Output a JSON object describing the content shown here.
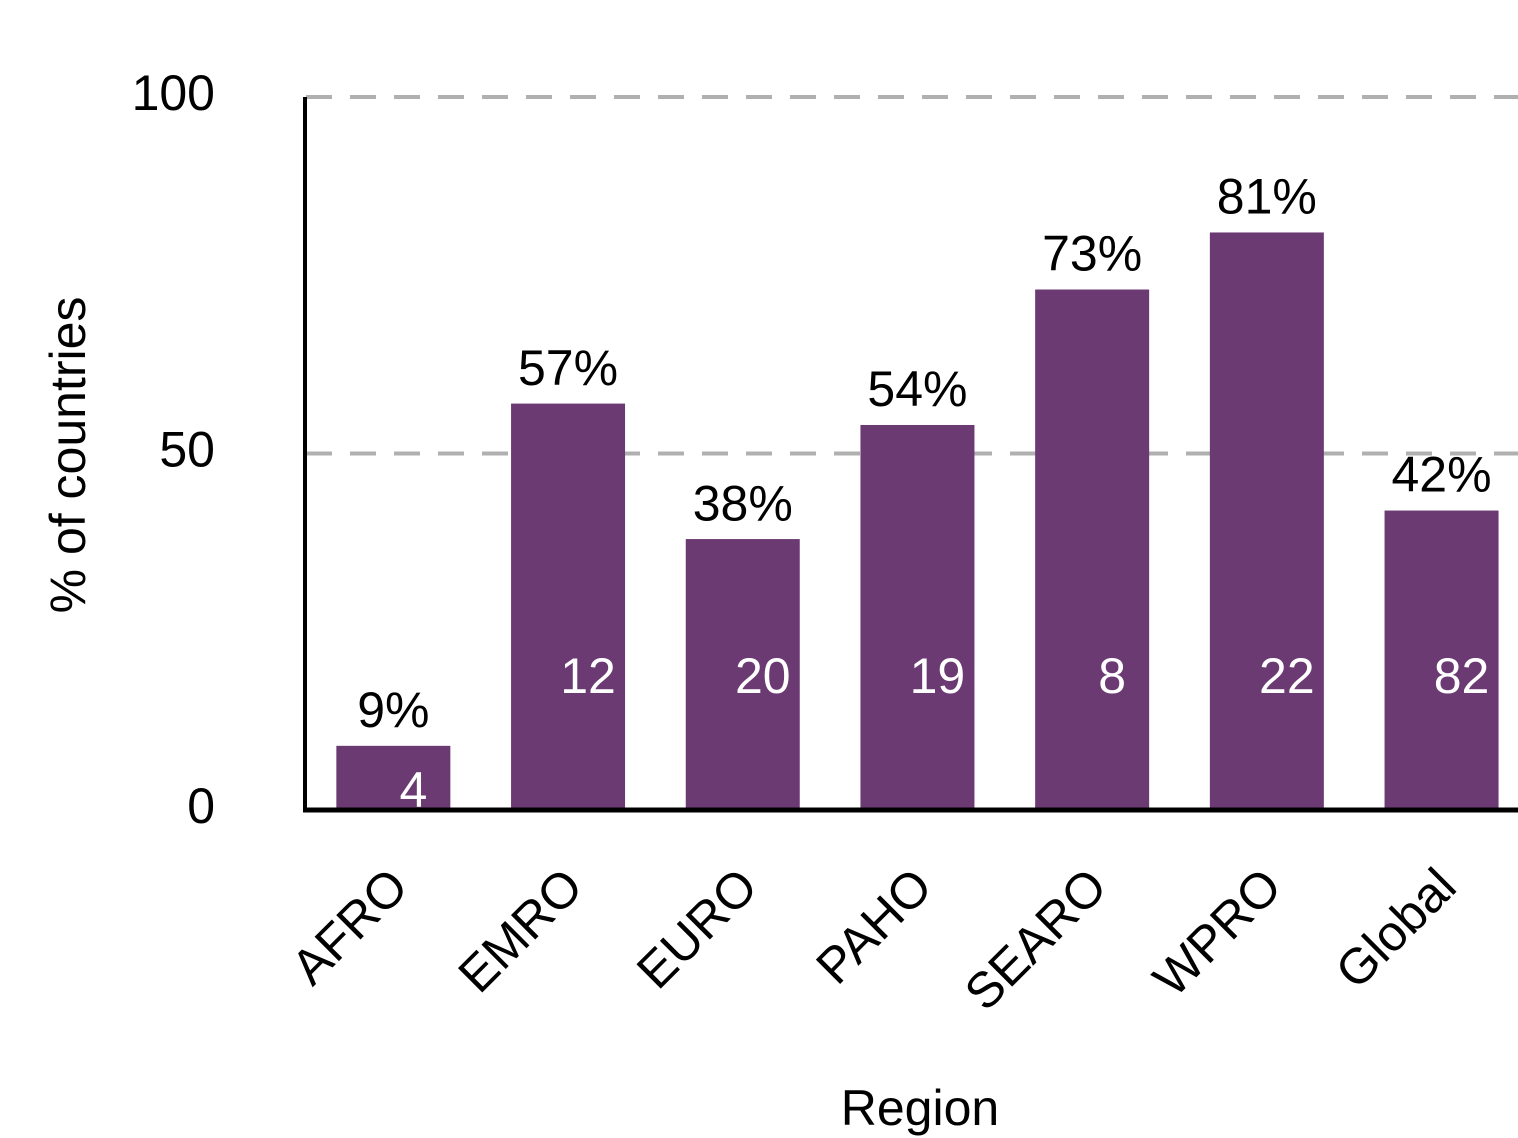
{
  "chart_data": {
    "type": "bar",
    "x_label": "Region",
    "y_label": "% of countries",
    "categories": [
      "AFRO",
      "EMRO",
      "EURO",
      "PAHO",
      "SEARO",
      "WPRO",
      "Global"
    ],
    "values": [
      9,
      57,
      38,
      54,
      73,
      81,
      42
    ],
    "value_labels": [
      "9%",
      "57%",
      "38%",
      "54%",
      "73%",
      "81%",
      "42%"
    ],
    "counts": [
      4,
      12,
      20,
      19,
      8,
      22,
      82
    ],
    "color": "#6b3a72",
    "ylim": [
      0,
      100
    ],
    "yticks": [
      0,
      50,
      100
    ],
    "grid": true
  }
}
